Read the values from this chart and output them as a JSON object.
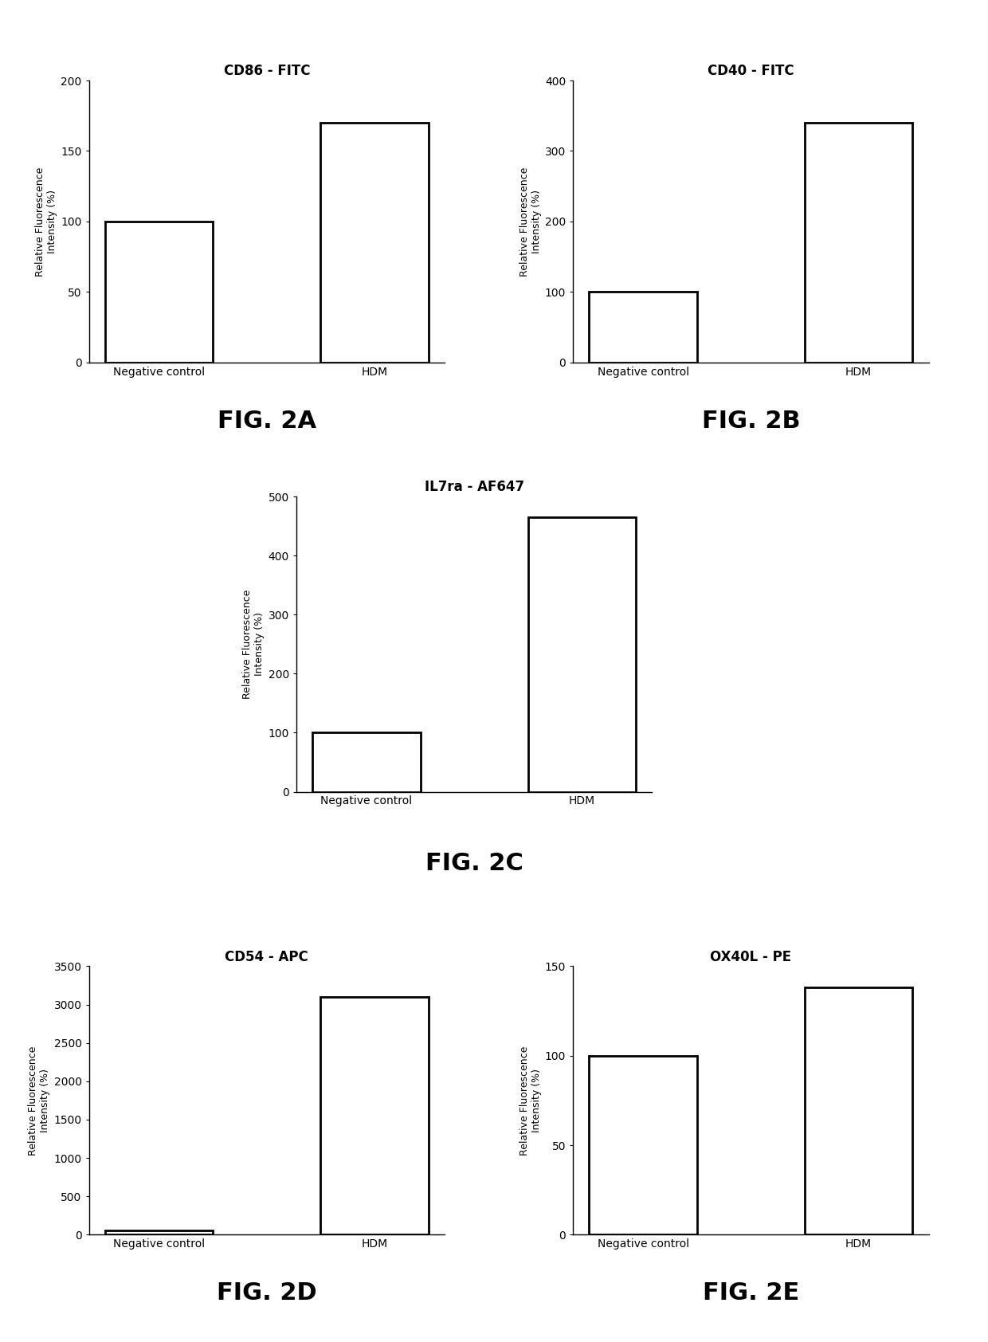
{
  "charts": [
    {
      "title": "CD86 - FITC",
      "categories": [
        "Negative control",
        "HDM"
      ],
      "values": [
        100,
        170
      ],
      "ylim": [
        0,
        200
      ],
      "yticks": [
        0,
        50,
        100,
        150,
        200
      ],
      "fig_label": "FIG. 2A"
    },
    {
      "title": "CD40 - FITC",
      "categories": [
        "Negative control",
        "HDM"
      ],
      "values": [
        100,
        340
      ],
      "ylim": [
        0,
        400
      ],
      "yticks": [
        0,
        100,
        200,
        300,
        400
      ],
      "fig_label": "FIG. 2B"
    },
    {
      "title": "IL7ra - AF647",
      "categories": [
        "Negative control",
        "HDM"
      ],
      "values": [
        100,
        465
      ],
      "ylim": [
        0,
        500
      ],
      "yticks": [
        0,
        100,
        200,
        300,
        400,
        500
      ],
      "fig_label": "FIG. 2C"
    },
    {
      "title": "CD54 - APC",
      "categories": [
        "Negative control",
        "HDM"
      ],
      "values": [
        60,
        3100
      ],
      "ylim": [
        0,
        3500
      ],
      "yticks": [
        0,
        500,
        1000,
        1500,
        2000,
        2500,
        3000,
        3500
      ],
      "fig_label": "FIG. 2D"
    },
    {
      "title": "OX40L - PE",
      "categories": [
        "Negative control",
        "HDM"
      ],
      "values": [
        100,
        138
      ],
      "ylim": [
        0,
        150
      ],
      "yticks": [
        0,
        50,
        100,
        150
      ],
      "fig_label": "FIG. 2E"
    }
  ],
  "ylabel": "Relative Fluorescence\nIntensity (%)",
  "bar_color": "white",
  "bar_edgecolor": "black",
  "bar_linewidth": 2.0,
  "background_color": "white",
  "fig_label_fontsize": 22,
  "title_fontsize": 12,
  "tick_fontsize": 10,
  "xlabel_fontsize": 10,
  "ylabel_fontsize": 9
}
